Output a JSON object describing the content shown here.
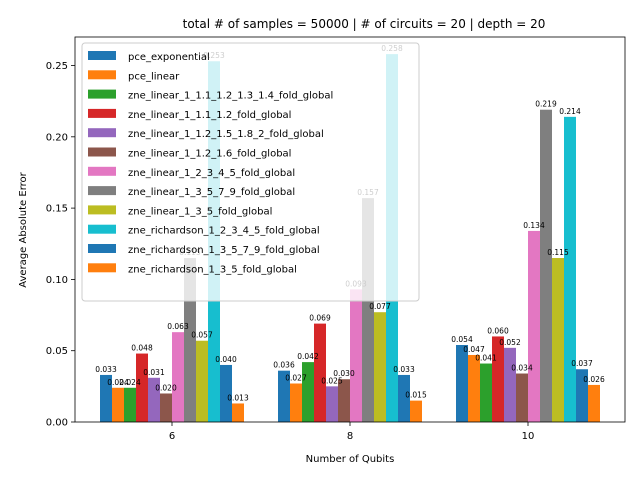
{
  "chart_data": {
    "type": "bar",
    "title": "total # of samples = 50000 | # of circuits = 20 | depth = 20",
    "xlabel": "Number of Qubits",
    "ylabel": "Average Absolute Error",
    "categories": [
      "6",
      "8",
      "10"
    ],
    "ylim": [
      0,
      0.27
    ],
    "yticks": [
      "0.00",
      "0.05",
      "0.10",
      "0.15",
      "0.20",
      "0.25"
    ],
    "grid": false,
    "legend_position": "upper-left",
    "series": [
      {
        "name": "pce_exponential",
        "color": "#1f77b4",
        "values": [
          0.033,
          0.036,
          0.054
        ],
        "labels": [
          "0.033",
          "0.036",
          "0.054"
        ]
      },
      {
        "name": "pce_linear",
        "color": "#ff7f0e",
        "values": [
          0.024,
          0.027,
          0.047
        ],
        "labels": [
          "0.024",
          "0.027",
          "0.047"
        ]
      },
      {
        "name": "zne_linear_1_1.1_1.2_1.3_1.4_fold_global",
        "color": "#2ca02c",
        "values": [
          0.024,
          0.042,
          0.041
        ],
        "labels": [
          "0.024",
          "0.042",
          "0.041"
        ]
      },
      {
        "name": "zne_linear_1_1.1_1.2_fold_global",
        "color": "#d62728",
        "values": [
          0.048,
          0.069,
          0.06
        ],
        "labels": [
          "0.048",
          "0.069",
          "0.060"
        ]
      },
      {
        "name": "zne_linear_1_1.2_1.5_1.8_2_fold_global",
        "color": "#9467bd",
        "values": [
          0.031,
          0.025,
          0.052
        ],
        "labels": [
          "0.031",
          "0.025",
          "0.052"
        ]
      },
      {
        "name": "zne_linear_1_1.2_1.6_fold_global",
        "color": "#8c564b",
        "values": [
          0.02,
          0.03,
          0.034
        ],
        "labels": [
          "0.020",
          "0.030",
          "0.034"
        ]
      },
      {
        "name": "zne_linear_1_2_3_4_5_fold_global",
        "color": "#e377c2",
        "values": [
          0.063,
          0.093,
          0.134
        ],
        "labels": [
          "0.063",
          "0.093",
          "0.134"
        ]
      },
      {
        "name": "zne_linear_1_3_5_7_9_fold_global",
        "color": "#7f7f7f",
        "values": [
          0.115,
          0.157,
          0.219
        ],
        "labels": [
          "0.115",
          "0.157",
          "0.219"
        ]
      },
      {
        "name": "zne_linear_1_3_5_fold_global",
        "color": "#bcbd22",
        "values": [
          0.057,
          0.077,
          0.115
        ],
        "labels": [
          "0.057",
          "0.077",
          "0.115"
        ]
      },
      {
        "name": "zne_richardson_1_2_3_4_5_fold_global",
        "color": "#17becf",
        "values": [
          0.253,
          0.258,
          0.214
        ],
        "labels": [
          "0.253",
          "0.258",
          "0.214"
        ]
      },
      {
        "name": "zne_richardson_1_3_5_7_9_fold_global",
        "color": "#1f77b4",
        "values": [
          0.04,
          0.033,
          0.037
        ],
        "labels": [
          "0.040",
          "0.033",
          "0.037"
        ]
      },
      {
        "name": "zne_richardson_1_3_5_fold_global",
        "color": "#ff7f0e",
        "values": [
          0.013,
          0.015,
          0.026
        ],
        "labels": [
          "0.013",
          "0.015",
          "0.026"
        ]
      }
    ]
  }
}
